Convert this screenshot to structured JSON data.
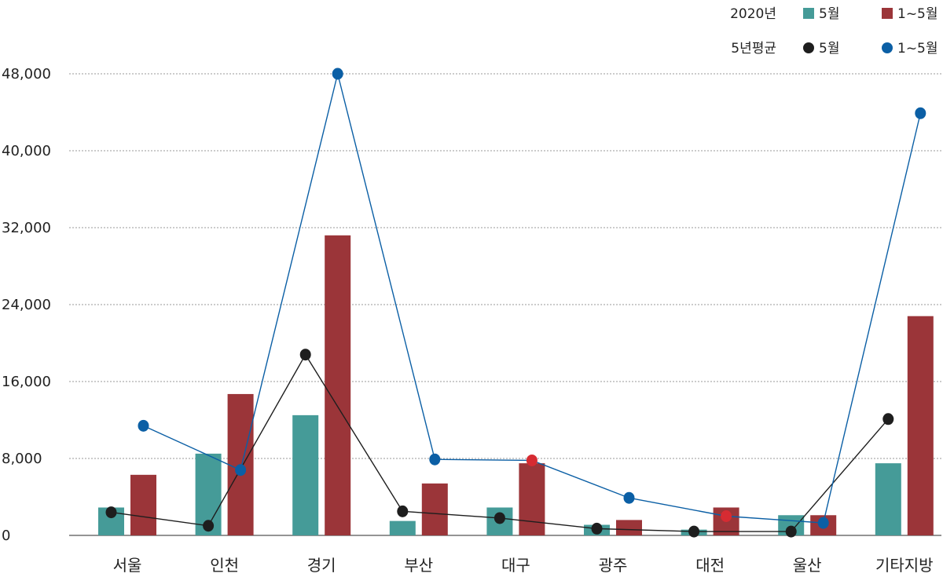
{
  "chart_data": {
    "type": "bar",
    "title": "",
    "xlabel": "",
    "ylabel": "",
    "ylim": [
      0,
      48000
    ],
    "yticks": [
      0,
      8000,
      16000,
      24000,
      32000,
      40000,
      48000
    ],
    "ytick_labels": [
      "0",
      "8,000",
      "16,000",
      "24,000",
      "32,000",
      "40,000",
      "48,000"
    ],
    "grid": true,
    "categories": [
      "서울",
      "인천",
      "경기",
      "부산",
      "대구",
      "광주",
      "대전",
      "울산",
      "기타지방"
    ],
    "series": [
      {
        "name": "5월",
        "group": "2020년",
        "kind": "bar",
        "color": "#459b98",
        "values": [
          2900,
          8500,
          12500,
          1500,
          2900,
          1100,
          600,
          2100,
          7500
        ]
      },
      {
        "name": "1~5월",
        "group": "2020년",
        "kind": "bar",
        "color": "#9b3539",
        "values": [
          6300,
          14700,
          31200,
          5400,
          7500,
          1600,
          2900,
          2100,
          22800
        ]
      },
      {
        "name": "5월",
        "group": "5년평균",
        "kind": "line",
        "color": "#1e1e1e",
        "values": [
          2400,
          1000,
          18800,
          2500,
          1800,
          700,
          400,
          400,
          12100
        ]
      },
      {
        "name": "1~5월",
        "group": "5년평균",
        "kind": "line",
        "color": "#0b5fa5",
        "values": [
          11400,
          6800,
          48000,
          7900,
          7800,
          3900,
          2000,
          1300,
          43900
        ],
        "highlight_points": [
          4,
          6
        ],
        "highlight_color": "#d62b32"
      }
    ],
    "legend": {
      "placement": "top-right",
      "rows": [
        {
          "label": "2020년",
          "items": [
            {
              "name": "5월",
              "marker": "square",
              "color": "#459b98"
            },
            {
              "name": "1~5월",
              "marker": "square",
              "color": "#9b3539"
            }
          ]
        },
        {
          "label": "5년평균",
          "items": [
            {
              "name": "5월",
              "marker": "circle",
              "color": "#1e1e1e"
            },
            {
              "name": "1~5월",
              "marker": "circle",
              "color": "#0b5fa5"
            }
          ]
        }
      ]
    }
  }
}
